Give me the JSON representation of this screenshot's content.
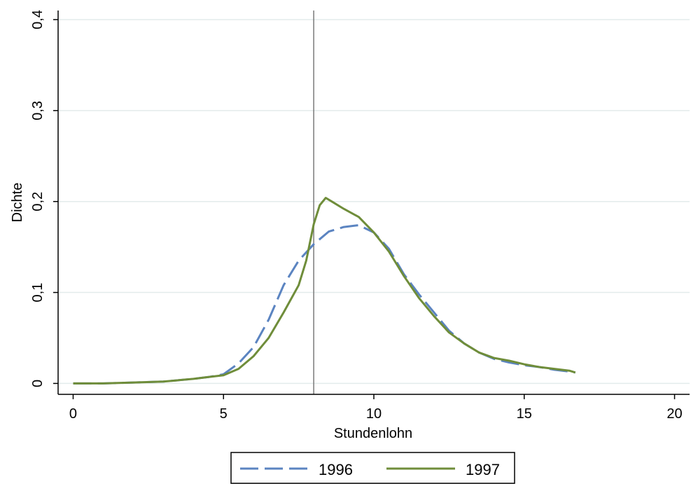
{
  "chart_data": {
    "type": "line",
    "title": "",
    "xlabel": "Stundenlohn",
    "ylabel": "Dichte",
    "xlim": [
      -0.5,
      20.5
    ],
    "ylim": [
      -0.012,
      0.41
    ],
    "x_ticks": [
      0,
      5,
      10,
      15,
      20
    ],
    "x_tick_labels": [
      "0",
      "5",
      "10",
      "15",
      "20"
    ],
    "y_ticks": [
      0,
      0.1,
      0.2,
      0.3,
      0.4
    ],
    "y_tick_labels": [
      "0",
      "0,1",
      "0,2",
      "0,3",
      "0,4"
    ],
    "grid": true,
    "legend_position": "bottom",
    "reference_line_x": 8,
    "series": [
      {
        "name": "1996",
        "color": "#5b84c1",
        "dash": "dashed",
        "x": [
          0,
          1,
          2,
          3,
          4,
          4.5,
          5,
          5.5,
          6,
          6.5,
          7,
          7.5,
          8,
          8.5,
          9,
          9.5,
          10,
          10.5,
          11,
          11.5,
          12,
          12.5,
          13,
          13.5,
          14,
          14.5,
          15,
          15.5,
          16,
          16.5,
          16.7
        ],
        "y": [
          0,
          0,
          0.001,
          0.002,
          0.005,
          0.007,
          0.01,
          0.022,
          0.04,
          0.07,
          0.108,
          0.135,
          0.153,
          0.167,
          0.172,
          0.174,
          0.166,
          0.148,
          0.12,
          0.098,
          0.078,
          0.058,
          0.044,
          0.034,
          0.027,
          0.023,
          0.02,
          0.018,
          0.015,
          0.013,
          0.012
        ]
      },
      {
        "name": "1997",
        "color": "#6f8d3a",
        "dash": "solid",
        "x": [
          0,
          1,
          2,
          3,
          4,
          4.5,
          5,
          5.5,
          6,
          6.5,
          7,
          7.5,
          7.75,
          8,
          8.2,
          8.4,
          8.6,
          9,
          9.5,
          10,
          10.5,
          11,
          11.5,
          12,
          12.5,
          13,
          13.5,
          14,
          14.5,
          15,
          15.5,
          16,
          16.5,
          16.7
        ],
        "y": [
          0,
          0,
          0.001,
          0.002,
          0.005,
          0.007,
          0.009,
          0.016,
          0.03,
          0.05,
          0.078,
          0.108,
          0.135,
          0.175,
          0.196,
          0.204,
          0.2,
          0.192,
          0.183,
          0.166,
          0.145,
          0.118,
          0.094,
          0.074,
          0.056,
          0.044,
          0.034,
          0.028,
          0.025,
          0.021,
          0.018,
          0.016,
          0.014,
          0.012
        ]
      }
    ]
  }
}
